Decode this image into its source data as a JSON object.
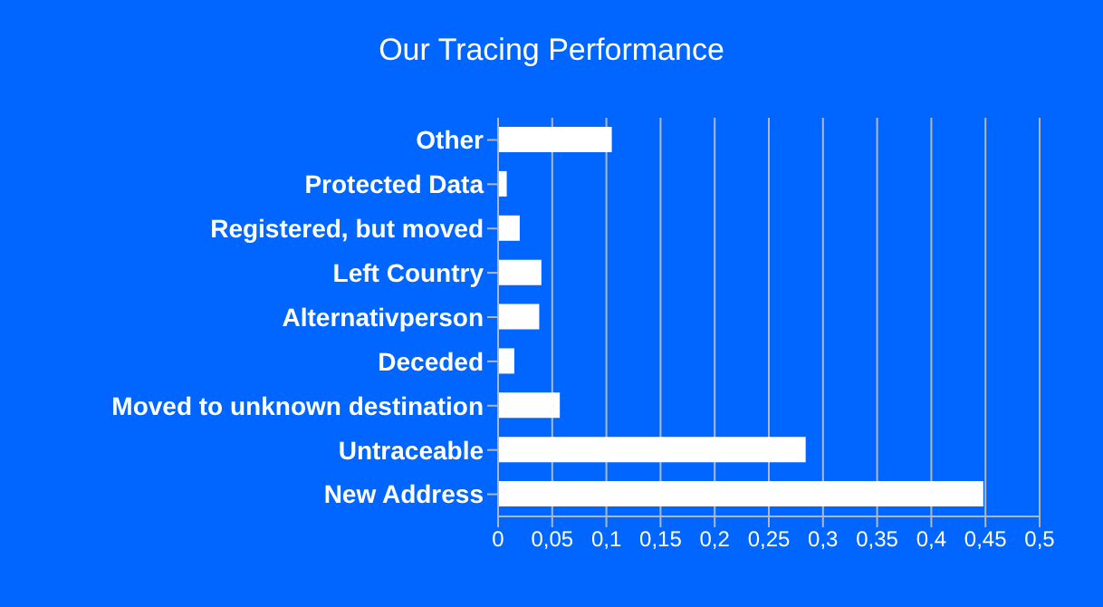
{
  "chart_data": {
    "type": "bar",
    "orientation": "horizontal",
    "title": "Our Tracing Performance",
    "categories": [
      "Other",
      "Protected Data",
      "Registered, but moved",
      "Left Country",
      "Alternativperson",
      "Deceded",
      "Moved to unknown destination",
      "Untraceable",
      "New Address"
    ],
    "values": [
      0.105,
      0.008,
      0.02,
      0.04,
      0.038,
      0.015,
      0.057,
      0.284,
      0.448
    ],
    "color": "#ffffff",
    "xlim": [
      0,
      0.5
    ],
    "xticks": [
      0,
      {
        "value": 0.05,
        "label": "0,05"
      },
      {
        "value": 0.1,
        "label": "0,1"
      },
      {
        "value": 0.15,
        "label": "0,15"
      },
      {
        "value": 0.2,
        "label": "0,2"
      },
      {
        "value": 0.25,
        "label": "0,25"
      },
      {
        "value": 0.3,
        "label": "0,3"
      },
      {
        "value": 0.35,
        "label": "0,35"
      },
      {
        "value": 0.4,
        "label": "0,4"
      },
      {
        "value": 0.45,
        "label": "0,45"
      },
      {
        "value": 0.5,
        "label": "0,5"
      }
    ],
    "grid": "x",
    "legend": false
  }
}
